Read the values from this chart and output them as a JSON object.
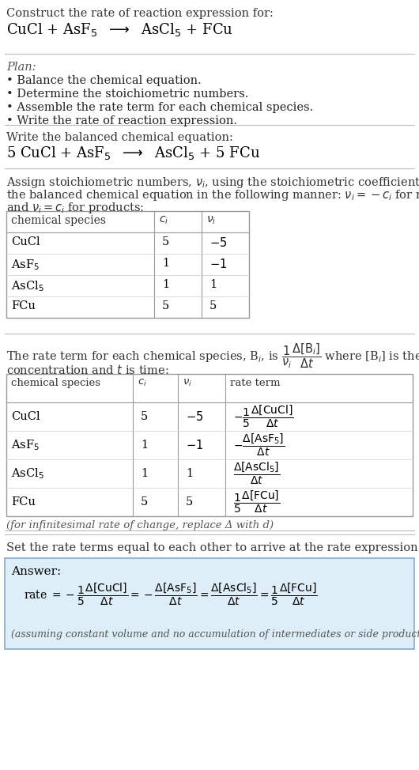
{
  "bg_color": "#ffffff",
  "text_color": "#000000",
  "gray_text": "#555555",
  "light_blue_bg": "#ddeeff",
  "light_blue_border": "#aabbcc",
  "title_line1": "Construct the rate of reaction expression for:",
  "plan_header": "Plan:",
  "plan_items": [
    "• Balance the chemical equation.",
    "• Determine the stoichiometric numbers.",
    "• Assemble the rate term for each chemical species.",
    "• Write the rate of reaction expression."
  ],
  "balanced_header": "Write the balanced chemical equation:",
  "assign_text1": "Assign stoichiometric numbers, ",
  "set_equal_text": "Set the rate terms equal to each other to arrive at the rate expression:",
  "answer_label": "Answer:",
  "infinitesimal_note": "(for infinitesimal rate of change, replace Δ with d)",
  "disclaimer": "(assuming constant volume and no accumulation of intermediates or side products)"
}
